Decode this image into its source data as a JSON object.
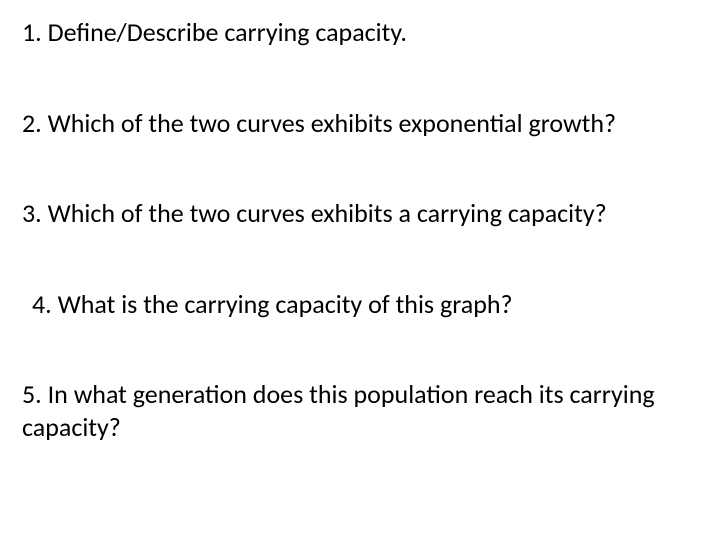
{
  "text_color": "#000000",
  "background_color": "#ffffff",
  "font_family": "Calibri",
  "questions": {
    "q1": "1. Define/Describe carrying capacity.",
    "q2": "2. Which of the two curves exhibits exponential growth?",
    "q3": "3. Which of the two curves exhibits a carrying capacity?",
    "q4": "4. What is the carrying capacity of this graph?",
    "q5": "5. In what generation does this population reach its carrying capacity?"
  }
}
